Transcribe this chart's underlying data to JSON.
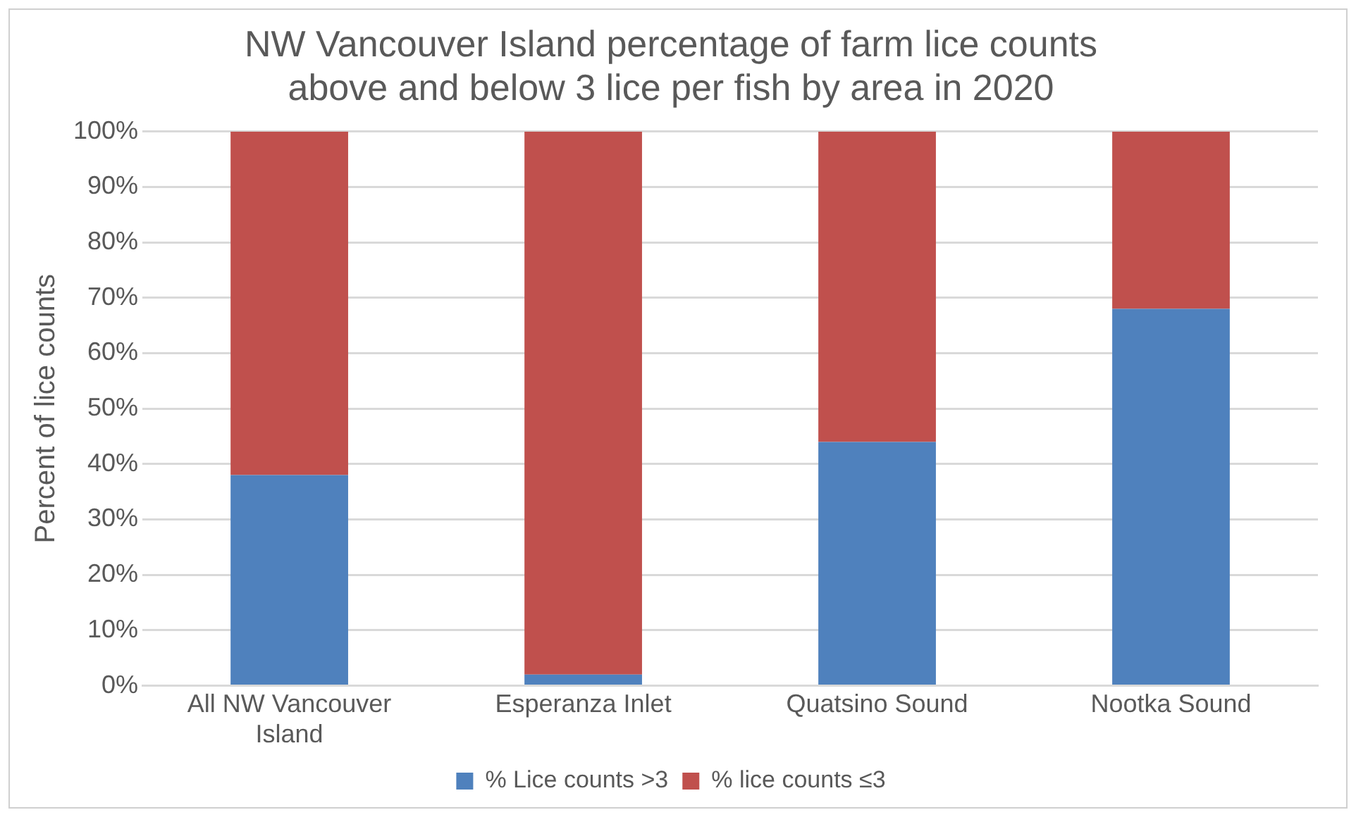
{
  "chart_data": {
    "type": "bar",
    "title": "NW Vancouver Island percentage of farm lice counts above and below 3 lice per fish by area in 2020",
    "ylabel": "Percent of lice counts",
    "categories": [
      "All NW Vancouver Island",
      "Esperanza Inlet",
      "Quatsino Sound",
      "Nootka Sound"
    ],
    "series": [
      {
        "name": "% Lice counts >3",
        "color": "#4f81bd",
        "values": [
          38,
          2,
          44,
          68
        ]
      },
      {
        "name": "% lice counts ≤3",
        "color": "#c0504d",
        "values": [
          62,
          98,
          56,
          32
        ]
      }
    ],
    "stacked": true,
    "ylim": [
      0,
      100
    ],
    "yticks": [
      {
        "value": 0,
        "label": "0%"
      },
      {
        "value": 10,
        "label": "10%"
      },
      {
        "value": 20,
        "label": "20%"
      },
      {
        "value": 30,
        "label": "30%"
      },
      {
        "value": 40,
        "label": "40%"
      },
      {
        "value": 50,
        "label": "50%"
      },
      {
        "value": 60,
        "label": "60%"
      },
      {
        "value": 70,
        "label": "70%"
      },
      {
        "value": 80,
        "label": "80%"
      },
      {
        "value": 90,
        "label": "90%"
      },
      {
        "value": 100,
        "label": "100%"
      }
    ],
    "grid": "y",
    "legend": "bottom"
  }
}
